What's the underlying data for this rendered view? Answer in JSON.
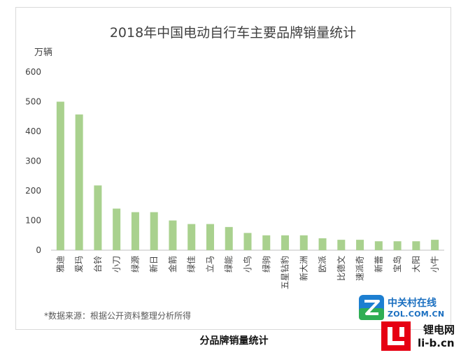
{
  "chart_data": {
    "type": "bar",
    "title": "2018年中国电动自行车主要品牌销量统计",
    "ylabel": "万辆",
    "xlabel": "",
    "ylim": [
      0,
      600
    ],
    "yticks": [
      0,
      100,
      200,
      300,
      400,
      500,
      600
    ],
    "grid": false,
    "categories": [
      "雅迪",
      "爱玛",
      "台铃",
      "小刀",
      "绿源",
      "新日",
      "金箭",
      "绿佳",
      "立马",
      "绿能",
      "小鸟",
      "绿驹",
      "五星钻豹",
      "新大洲",
      "欧派",
      "比德文",
      "速派奇",
      "新蕾",
      "宝岛",
      "大阳",
      "小牛"
    ],
    "values": [
      500,
      457,
      218,
      140,
      128,
      128,
      100,
      88,
      88,
      78,
      58,
      50,
      50,
      50,
      40,
      35,
      35,
      30,
      30,
      30,
      35
    ],
    "bar_color": "#a9d18e"
  },
  "source_note": "*数据来源：根据公开资料整理分析所得",
  "caption": "分品牌销量统计",
  "watermark_zol": {
    "name": "中关村在线",
    "url": "ZOL.COM.CN"
  },
  "watermark_lib": {
    "name": "锂电网",
    "url": "li-b.cn"
  },
  "colors": {
    "axis": "#bfbfbf",
    "text": "#404040",
    "title": "#404040"
  }
}
